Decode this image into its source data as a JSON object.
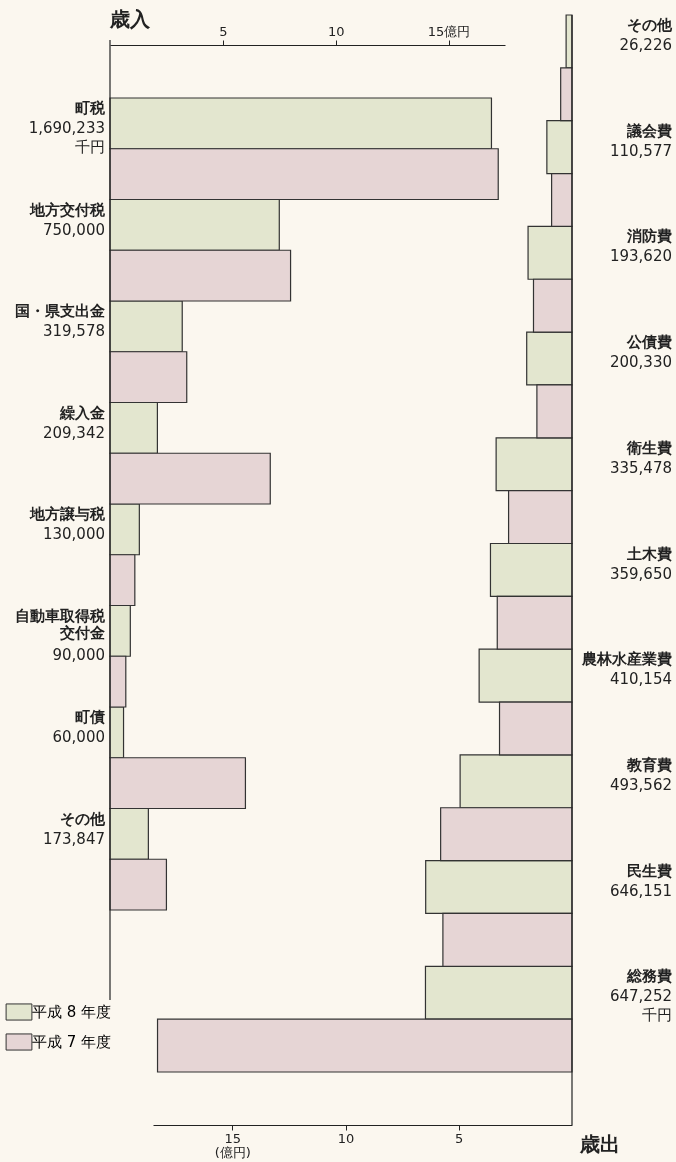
{
  "chart_data": [
    {
      "type": "bar",
      "orientation": "horizontal",
      "title": "歳入",
      "categories": [
        "町税",
        "地方交付税",
        "国・県支出金",
        "繰入金",
        "地方譲与税",
        "自動車取得税交付金",
        "町債",
        "その他"
      ],
      "series": [
        {
          "name": "平成 8 年度",
          "color": "#e3e6cf",
          "values": [
            16.9,
            7.5,
            3.2,
            2.1,
            1.3,
            0.9,
            0.6,
            1.7
          ]
        },
        {
          "name": "平成 7 年度",
          "color": "#e6d5d5",
          "values": [
            17.2,
            8.0,
            3.4,
            7.1,
            1.1,
            0.7,
            6.0,
            2.5
          ]
        }
      ],
      "annotations": [
        "1,690,233\n千円",
        "750,000",
        "319,578",
        "209,342",
        "130,000",
        "90,000",
        "60,000",
        "173,847"
      ],
      "xlim": [
        0,
        17.5
      ],
      "xticks": [
        5,
        10,
        {
          "value": 15,
          "label": "15億円"
        }
      ],
      "grid": false,
      "legend": "bottom left"
    },
    {
      "type": "bar",
      "orientation": "horizontal",
      "title": "歳出",
      "categories": [
        "その他",
        "議会費",
        "消防費",
        "公債費",
        "衛生費",
        "土木費",
        "農林水産業費",
        "教育費",
        "民生費",
        "総務費"
      ],
      "series": [
        {
          "name": "平成 8 年度",
          "color": "#e3e6cf",
          "values": [
            0.26,
            1.11,
            1.94,
            2.0,
            3.35,
            3.6,
            4.1,
            4.94,
            6.46,
            6.47
          ]
        },
        {
          "name": "平成 7 年度",
          "color": "#e6d5d5",
          "values": [
            0.5,
            0.9,
            1.7,
            1.55,
            2.8,
            3.3,
            3.2,
            5.8,
            5.7,
            18.3
          ]
        }
      ],
      "annotations": [
        "26,226",
        "110,577",
        "193,620",
        "200,330",
        "335,478",
        "359,650",
        "410,154",
        "493,562",
        "646,151",
        "647,252\n千円"
      ],
      "xlim": [
        18.5,
        0
      ],
      "xticks": [
        {
          "value": 15,
          "label": "15 (億円)"
        },
        10,
        5
      ],
      "grid": false
    }
  ]
}
